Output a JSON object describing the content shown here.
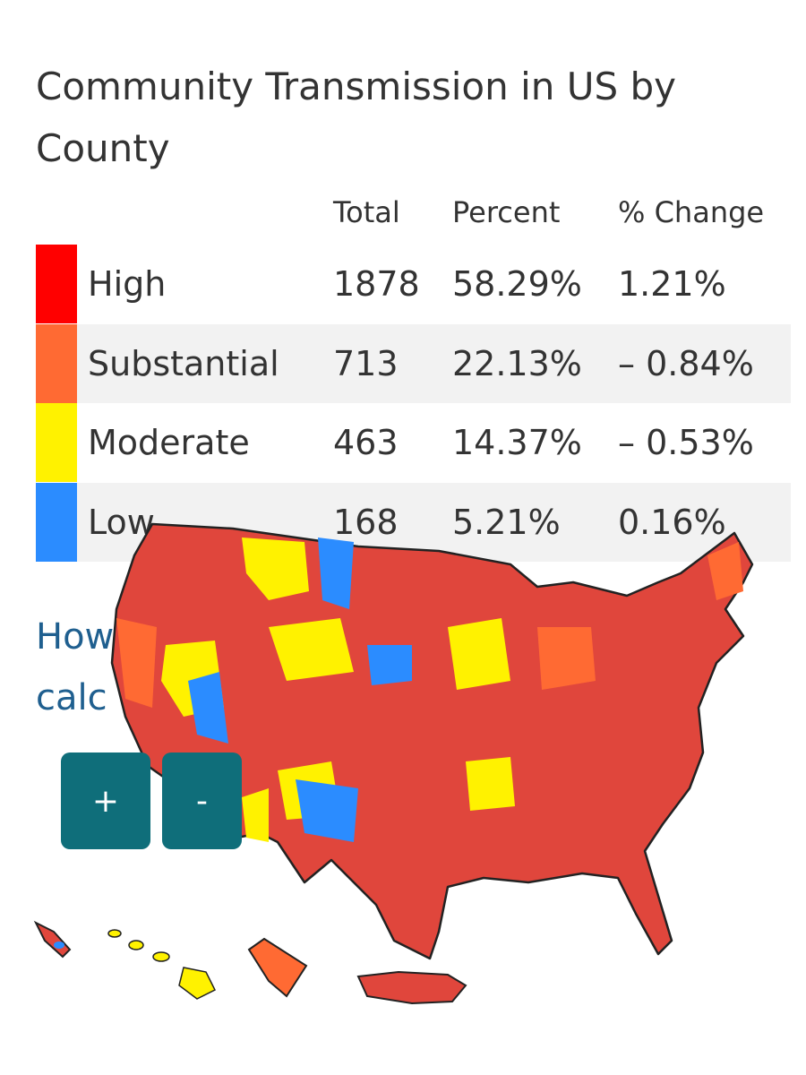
{
  "header": {
    "title_line1": "Community Transmission in US by",
    "title_line2": "County"
  },
  "table": {
    "columns": [
      "Total",
      "Percent",
      "% Change"
    ],
    "rows": [
      {
        "label": "High",
        "total": 1878,
        "percent": "58.29%",
        "change": "1.21%",
        "color": "#ff0000"
      },
      {
        "label": "Substantial",
        "total": 713,
        "percent": "22.13%",
        "change": "– 0.84%",
        "color": "#ff6a33"
      },
      {
        "label": "Moderate",
        "total": 463,
        "percent": "14.37%",
        "change": "– 0.53%",
        "color": "#fff200"
      },
      {
        "label": "Low",
        "total": 168,
        "percent": "5.21%",
        "change": "0.16%",
        "color": "#2b8cff"
      }
    ]
  },
  "link": {
    "line1": "How",
    "line2": "calc"
  },
  "zoom": {
    "in": "+",
    "out": "-"
  }
}
